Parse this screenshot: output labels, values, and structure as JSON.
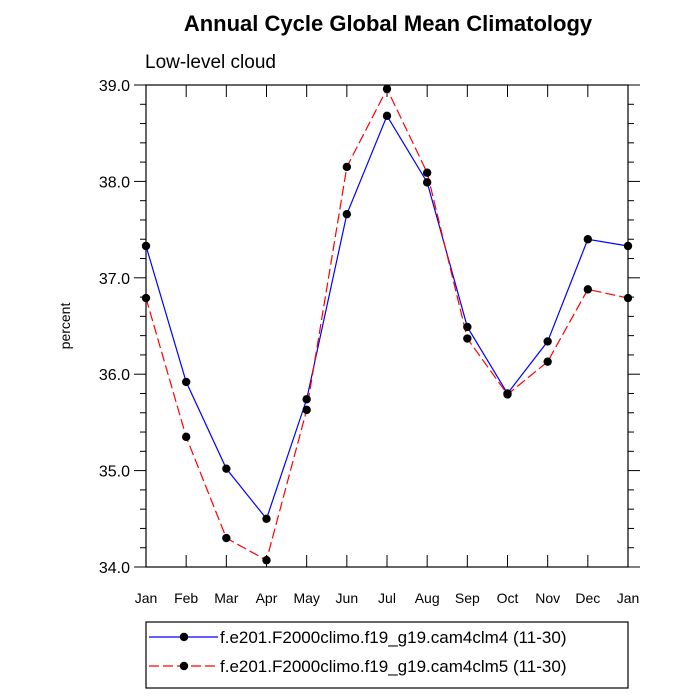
{
  "chart_data": {
    "type": "line",
    "title": "Annual Cycle Global Mean Climatology",
    "subtitle": "Low-level cloud",
    "xlabel": "",
    "ylabel": "percent",
    "categories": [
      "Jan",
      "Feb",
      "Mar",
      "Apr",
      "May",
      "Jun",
      "Jul",
      "Aug",
      "Sep",
      "Oct",
      "Nov",
      "Dec",
      "Jan"
    ],
    "ylim": [
      34.0,
      39.0
    ],
    "yticks": [
      "34.0",
      "35.0",
      "36.0",
      "37.0",
      "38.0",
      "39.0"
    ],
    "grid": false,
    "legend_position": "bottom",
    "series": [
      {
        "name": "f.e201.F2000climo.f19_g19.cam4clm4 (11-30)",
        "color": "#0000ff",
        "line_style": "solid",
        "marker": "filled-circle",
        "values": [
          37.33,
          35.92,
          35.02,
          34.5,
          35.74,
          37.66,
          38.68,
          37.99,
          36.49,
          35.8,
          36.34,
          37.4,
          37.33
        ]
      },
      {
        "name": "f.e201.F2000climo.f19_g19.cam4clm5 (11-30)",
        "color": "#ff0000",
        "line_style": "dashed",
        "marker": "filled-circle",
        "values": [
          36.79,
          35.35,
          34.3,
          34.07,
          35.63,
          38.15,
          38.96,
          38.09,
          36.37,
          35.79,
          36.13,
          36.88,
          36.79
        ]
      }
    ]
  }
}
